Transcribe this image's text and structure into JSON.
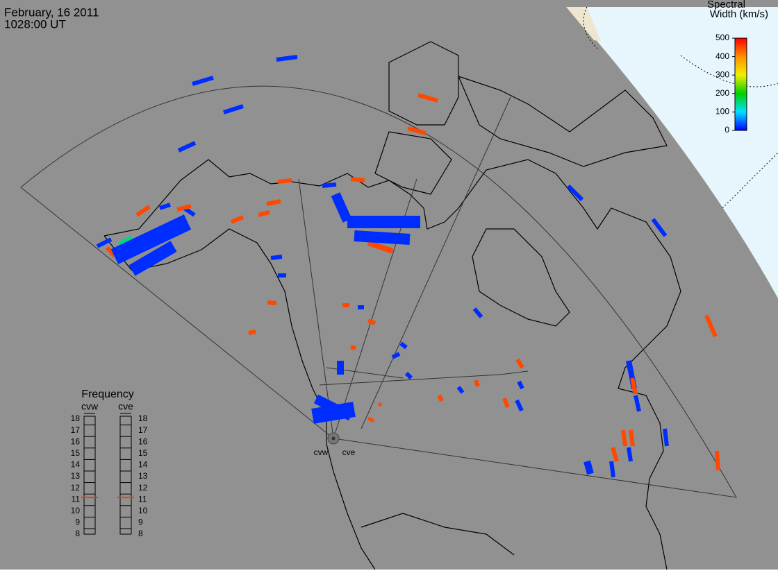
{
  "header": {
    "date": "February, 16 2011",
    "time": "1028:00 UT"
  },
  "colorbar": {
    "title": [
      "Spectral",
      "Width (km/s)"
    ],
    "ticks": [
      500,
      400,
      300,
      200,
      100,
      0
    ],
    "range": [
      0,
      500
    ]
  },
  "frequency": {
    "title": "Frequency",
    "range": [
      8,
      18
    ],
    "ticks": [
      18,
      17,
      16,
      15,
      14,
      13,
      12,
      11,
      10,
      9,
      8
    ],
    "radars": [
      {
        "name": "cvw",
        "value": 10.7
      },
      {
        "name": "cve",
        "value": 10.7
      }
    ]
  },
  "radar_labels": [
    "cvw",
    "cve"
  ],
  "echoes": {
    "spectral_width": [
      20,
      20,
      20,
      20,
      20,
      20,
      20,
      20,
      20,
      20,
      20,
      20,
      20,
      20,
      20,
      20,
      20,
      20,
      20,
      20,
      20,
      20,
      20,
      20,
      20,
      20,
      450,
      450,
      450,
      450,
      450,
      450,
      450,
      450,
      450,
      450,
      450,
      450,
      450,
      450,
      450,
      450,
      450,
      450,
      450,
      450,
      450,
      450,
      450,
      450,
      450,
      450,
      450,
      450,
      150,
      20,
      20,
      20,
      20,
      20,
      20,
      20,
      20,
      20
    ]
  }
}
